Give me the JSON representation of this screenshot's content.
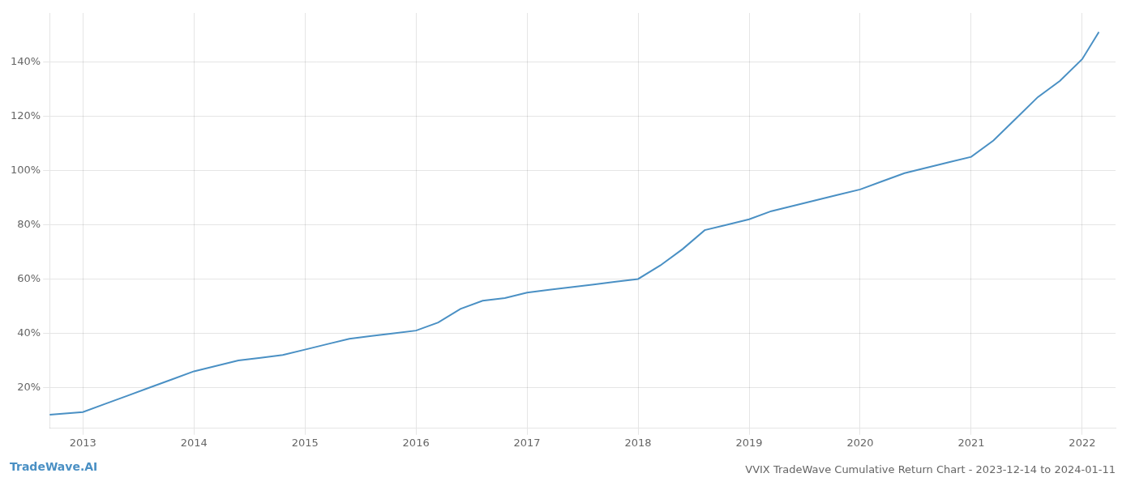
{
  "chart_data": {
    "type": "line",
    "title": "VVIX TradeWave Cumulative Return Chart - 2023-12-14 to 2024-01-11",
    "annotations": [
      "TradeWave.AI"
    ],
    "x": [
      2012.7,
      2013.0,
      2013.2,
      2013.4,
      2013.6,
      2013.8,
      2014.0,
      2014.2,
      2014.4,
      2014.6,
      2014.8,
      2015.0,
      2015.2,
      2015.4,
      2015.6,
      2015.8,
      2016.0,
      2016.2,
      2016.4,
      2016.6,
      2016.8,
      2017.0,
      2017.2,
      2017.4,
      2017.6,
      2017.8,
      2018.0,
      2018.2,
      2018.4,
      2018.6,
      2018.8,
      2019.0,
      2019.2,
      2019.4,
      2019.6,
      2019.8,
      2020.0,
      2020.2,
      2020.4,
      2020.6,
      2020.8,
      2021.0,
      2021.2,
      2021.4,
      2021.6,
      2021.8,
      2022.0,
      2022.15
    ],
    "values": [
      10,
      11,
      14,
      17,
      20,
      23,
      26,
      28,
      30,
      31,
      32,
      34,
      36,
      38,
      39,
      40,
      41,
      44,
      49,
      52,
      53,
      55,
      56,
      57,
      58,
      59,
      60,
      65,
      71,
      78,
      80,
      82,
      85,
      87,
      89,
      91,
      93,
      96,
      99,
      101,
      103,
      105,
      111,
      119,
      127,
      133,
      141,
      151
    ],
    "color": "#4a90c4",
    "xlim": [
      2012.7,
      2022.3
    ],
    "xticks": [
      2013,
      2014,
      2015,
      2016,
      2017,
      2018,
      2019,
      2020,
      2021,
      2022
    ],
    "ylim": [
      5,
      158
    ],
    "yticks": [
      {
        "value": 20,
        "label": "20%"
      },
      {
        "value": 40,
        "label": "40%"
      },
      {
        "value": 60,
        "label": "60%"
      },
      {
        "value": 80,
        "label": "80%"
      },
      {
        "value": 100,
        "label": "100%"
      },
      {
        "value": 120,
        "label": "120%"
      },
      {
        "value": 140,
        "label": "140%"
      }
    ],
    "grid": true
  }
}
